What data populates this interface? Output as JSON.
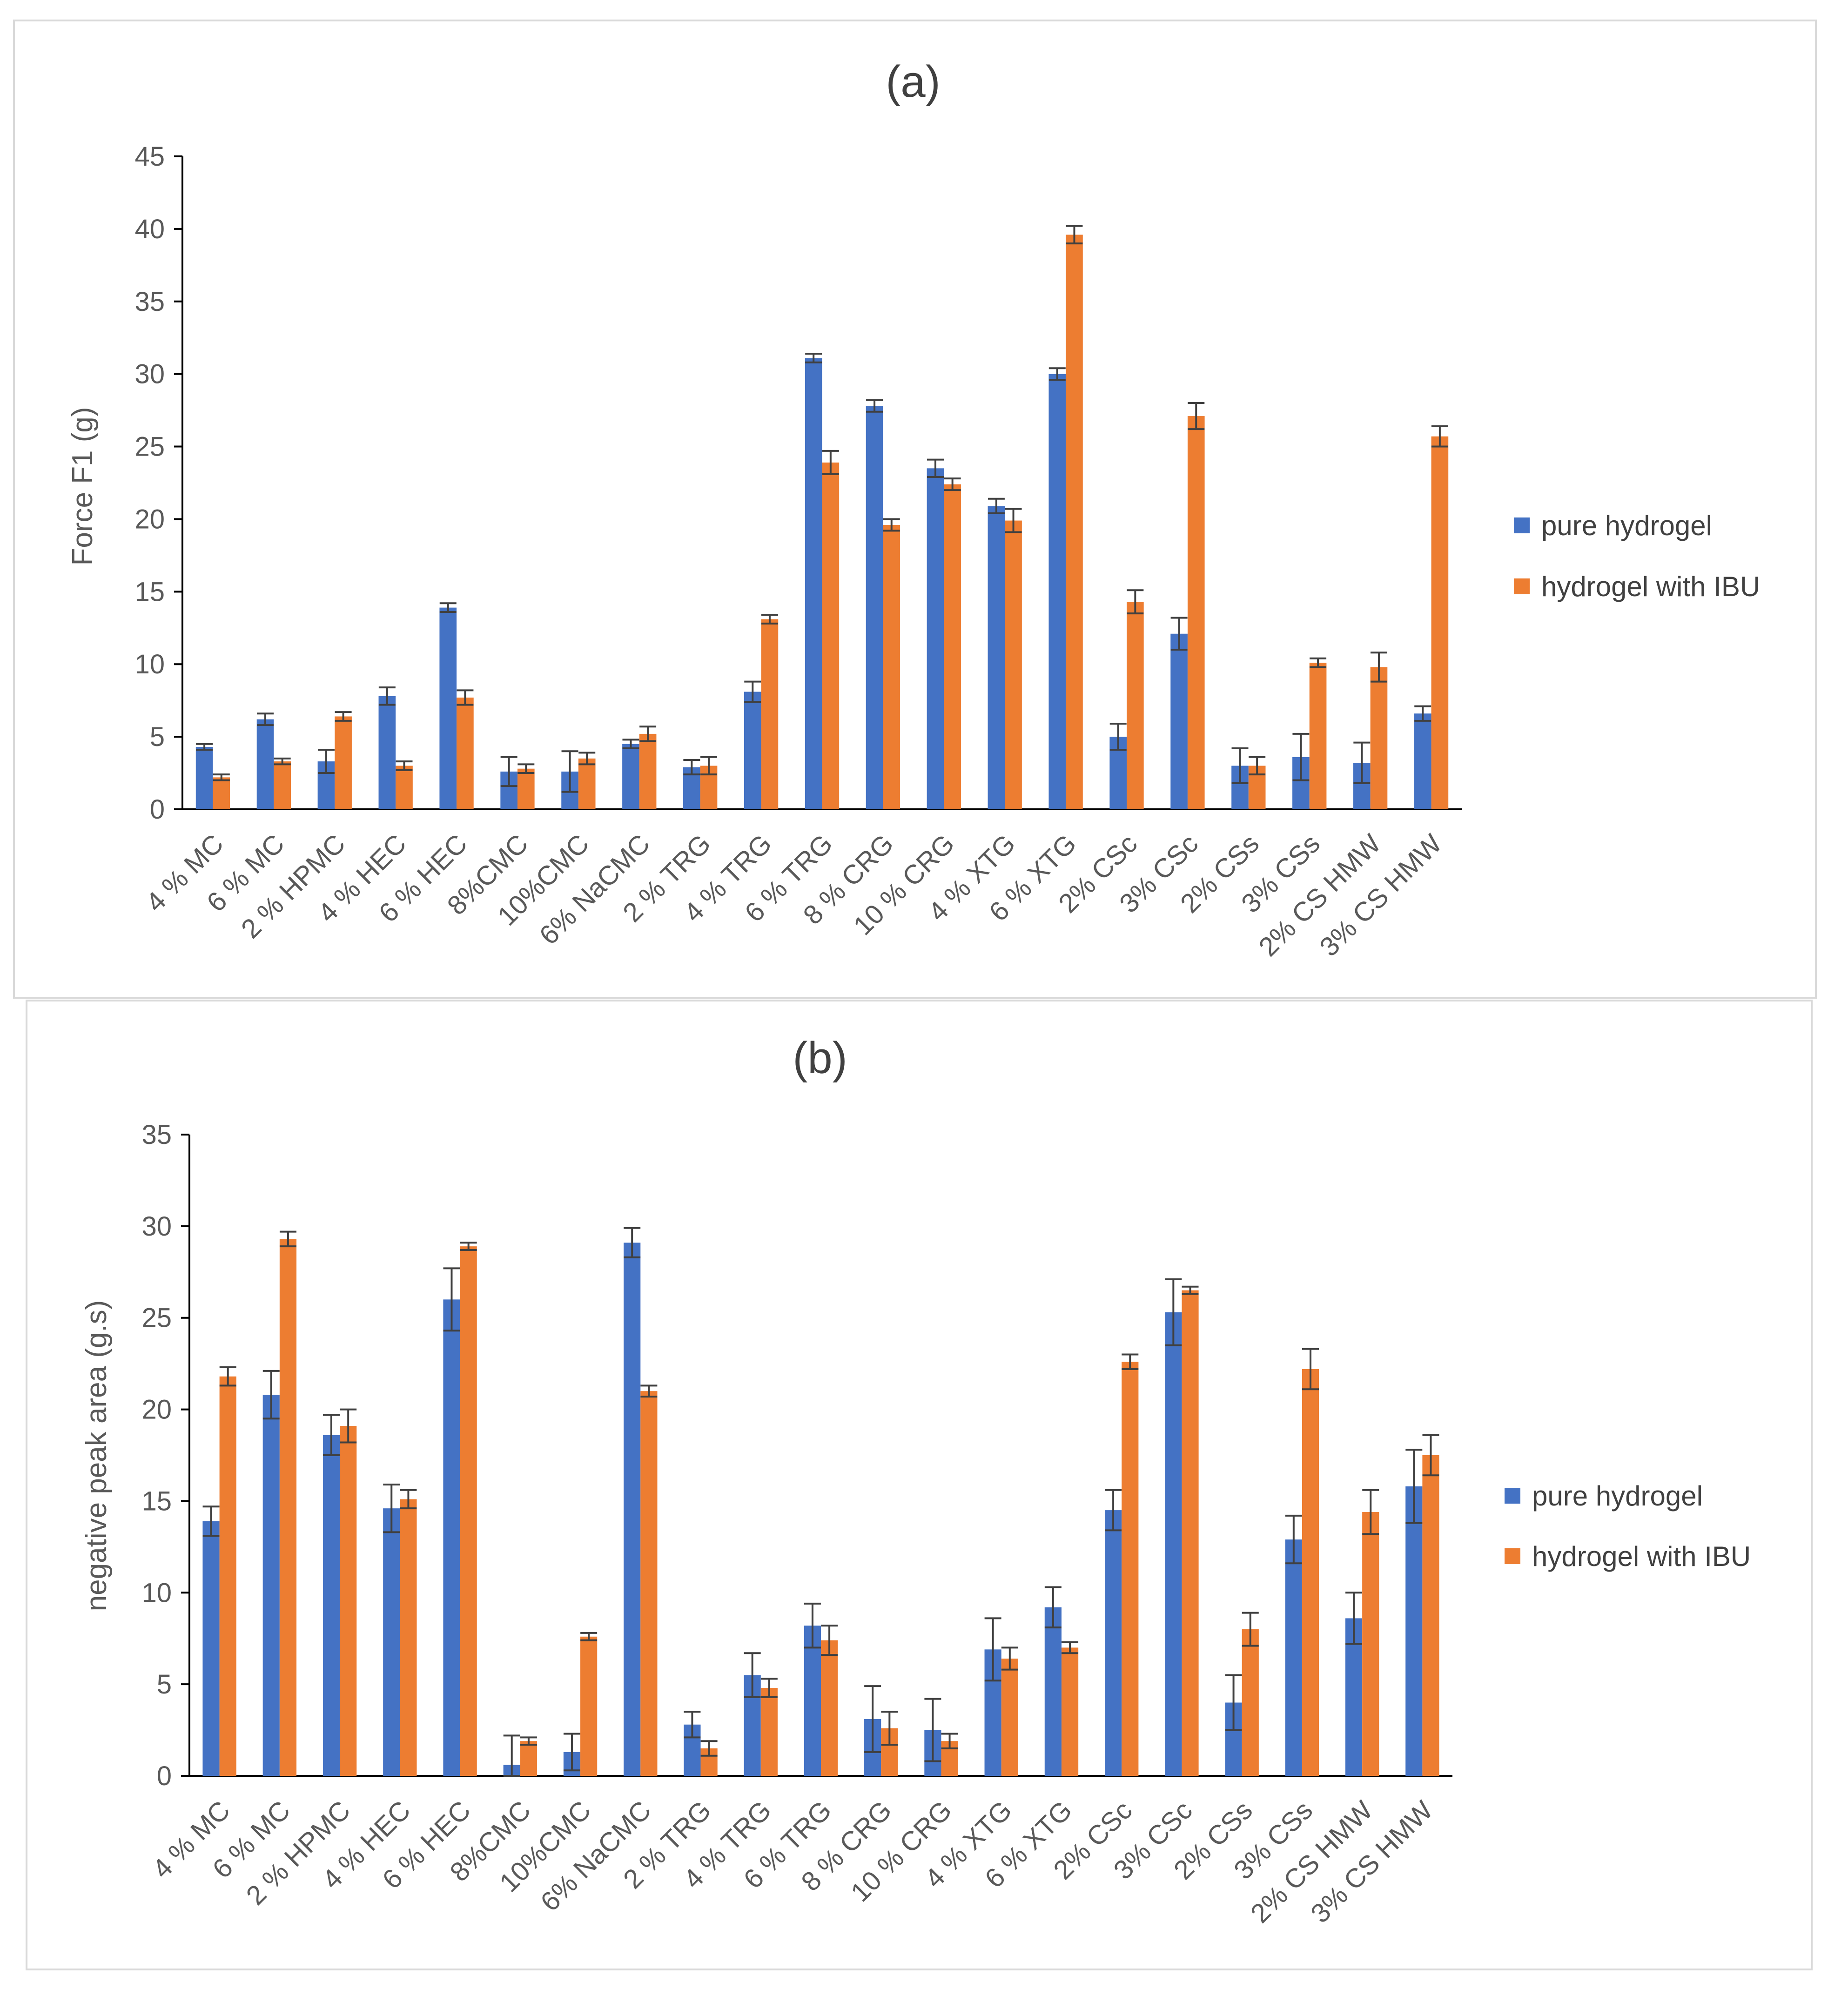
{
  "colors": {
    "pure": "#4472C4",
    "ibu": "#ED7D31",
    "axis": "#000000",
    "text": "#595959",
    "error": "#404040",
    "frame": "#D9D9D9"
  },
  "chart_data": [
    {
      "type": "bar",
      "title": "(a)",
      "xlabel": "",
      "ylabel": "Force F1 (g)",
      "ylim": [
        0,
        45
      ],
      "yticks": [
        0,
        5,
        10,
        15,
        20,
        25,
        30,
        35,
        40,
        45
      ],
      "legend": "right",
      "categories": [
        "4 % MC",
        "6 % MC",
        "2 % HPMC",
        "4 % HEC",
        "6 % HEC",
        "8%CMC",
        "10%CMC",
        "6% NaCMC",
        "2 % TRG",
        "4 % TRG",
        "6 % TRG",
        "8 % CRG",
        "10 % CRG",
        "4 % XTG",
        "6 % XTG",
        "2% CSc",
        "3% CSc",
        "2% CSs",
        "3% CSs",
        "2% CS HMW",
        "3% CS HMW"
      ],
      "series": [
        {
          "name": "pure hydrogel",
          "values": [
            4.3,
            6.2,
            3.3,
            7.8,
            13.9,
            2.6,
            2.6,
            4.5,
            2.9,
            8.1,
            31.1,
            27.8,
            23.5,
            20.9,
            30.0,
            5.0,
            12.1,
            3.0,
            3.6,
            3.2,
            6.6
          ],
          "errors": [
            0.2,
            0.4,
            0.8,
            0.6,
            0.3,
            1.0,
            1.4,
            0.3,
            0.5,
            0.7,
            0.3,
            0.4,
            0.6,
            0.5,
            0.4,
            0.9,
            1.1,
            1.2,
            1.6,
            1.4,
            0.5
          ]
        },
        {
          "name": "hydrogel with IBU",
          "values": [
            2.2,
            3.3,
            6.4,
            3.0,
            7.7,
            2.8,
            3.5,
            5.2,
            3.0,
            13.1,
            23.9,
            19.6,
            22.4,
            19.9,
            39.6,
            14.3,
            27.1,
            3.0,
            10.1,
            9.8,
            25.7
          ],
          "errors": [
            0.2,
            0.2,
            0.3,
            0.3,
            0.5,
            0.3,
            0.4,
            0.5,
            0.6,
            0.3,
            0.8,
            0.4,
            0.4,
            0.8,
            0.6,
            0.8,
            0.9,
            0.6,
            0.3,
            1.0,
            0.7
          ]
        }
      ]
    },
    {
      "type": "bar",
      "title": "(b)",
      "xlabel": "",
      "ylabel": "negative peak area (g.s)",
      "ylim": [
        0,
        35
      ],
      "yticks": [
        0,
        5,
        10,
        15,
        20,
        25,
        30,
        35
      ],
      "legend": "right",
      "categories": [
        "4 % MC",
        "6 % MC",
        "2 % HPMC",
        "4 % HEC",
        "6 % HEC",
        "8%CMC",
        "10%CMC",
        "6% NaCMC",
        "2 % TRG",
        "4 % TRG",
        "6 % TRG",
        "8 % CRG",
        "10 % CRG",
        "4 % XTG",
        "6 % XTG",
        "2% CSc",
        "3% CSc",
        "2% CSs",
        "3% CSs",
        "2% CS HMW",
        "3% CS HMW"
      ],
      "series": [
        {
          "name": "pure hydrogel",
          "values": [
            13.9,
            20.8,
            18.6,
            14.6,
            26.0,
            0.6,
            1.3,
            29.1,
            2.8,
            5.5,
            8.2,
            3.1,
            2.5,
            6.9,
            9.2,
            14.5,
            25.3,
            4.0,
            12.9,
            8.6,
            15.8
          ],
          "errors": [
            0.8,
            1.3,
            1.1,
            1.3,
            1.7,
            1.6,
            1.0,
            0.8,
            0.7,
            1.2,
            1.2,
            1.8,
            1.7,
            1.7,
            1.1,
            1.1,
            1.8,
            1.5,
            1.3,
            1.4,
            2.0
          ]
        },
        {
          "name": "hydrogel with IBU",
          "values": [
            21.8,
            29.3,
            19.1,
            15.1,
            28.9,
            1.9,
            7.6,
            21.0,
            1.5,
            4.8,
            7.4,
            2.6,
            1.9,
            6.4,
            7.0,
            22.6,
            26.5,
            8.0,
            22.2,
            14.4,
            17.5
          ],
          "errors": [
            0.5,
            0.4,
            0.9,
            0.5,
            0.2,
            0.2,
            0.2,
            0.3,
            0.4,
            0.5,
            0.8,
            0.9,
            0.4,
            0.6,
            0.3,
            0.4,
            0.2,
            0.9,
            1.1,
            1.2,
            1.1
          ]
        }
      ]
    }
  ]
}
